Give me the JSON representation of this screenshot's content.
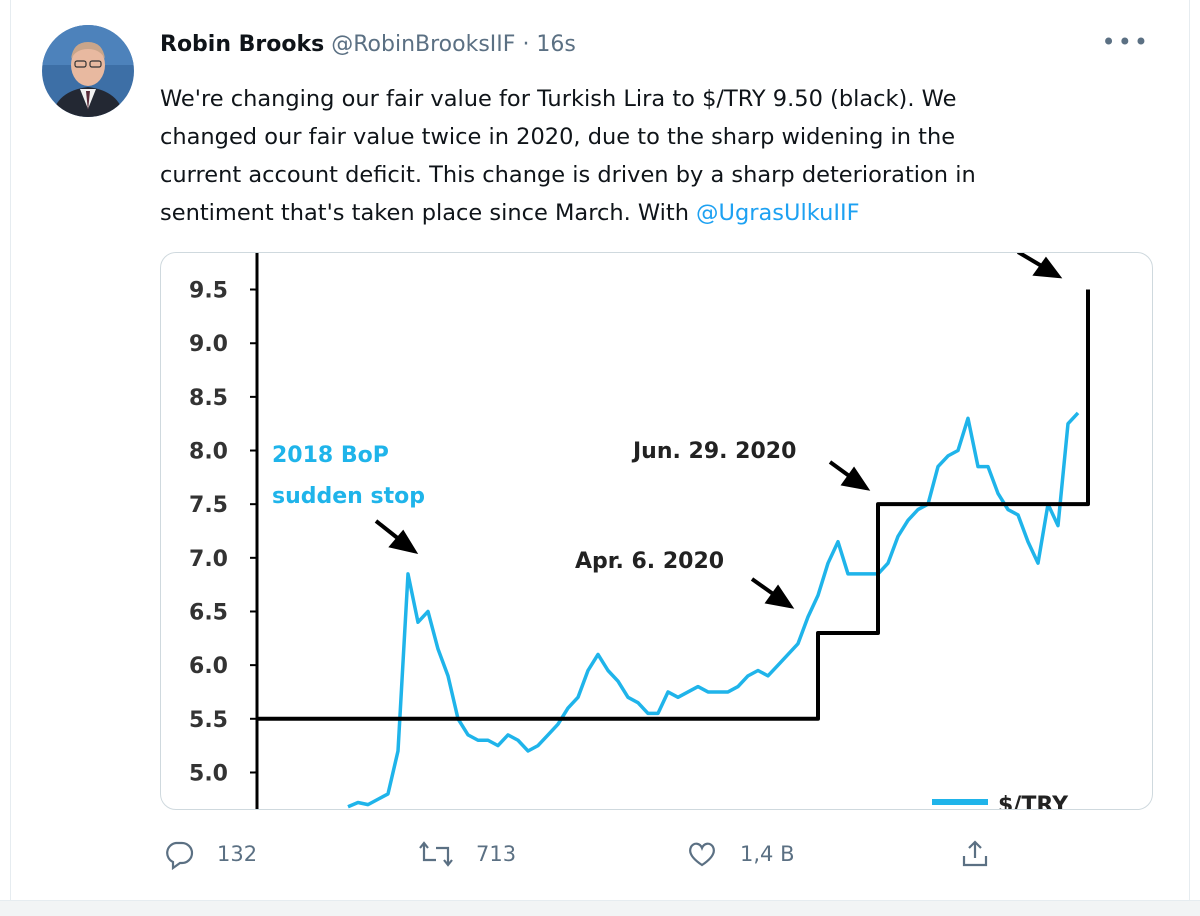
{
  "tweet": {
    "author": "Robin Brooks",
    "handle": "@RobinBrooksIIF",
    "time": "· 16s",
    "text_lines": [
      "We're changing our fair value for Turkish Lira to $/TRY 9.50 (black). We",
      "changed our fair value twice in 2020, due to the sharp widening in the",
      "current account deficit. This change is driven by a sharp deterioration in",
      "sentiment that's taken place since March. With"
    ],
    "mention": "@UgrasUlkuIIF"
  },
  "chart": {
    "ylim": [
      4.65,
      9.85
    ],
    "yticks": [
      {
        "value": 5,
        "label": "5.0"
      },
      5.5,
      {
        "value": 6,
        "label": "6.0"
      },
      6.5,
      {
        "value": 7,
        "label": "7.0"
      },
      7.5,
      {
        "value": 8,
        "label": "8.0"
      },
      8.5,
      {
        "value": 9,
        "label": "9.0"
      },
      9.5
    ],
    "annotations": [
      "2018 BoP",
      "sudden stop",
      "Apr. 6. 2020",
      "Jun. 29. 2020"
    ],
    "series": [
      {
        "name": "$/TRY",
        "color": "#1fb4ea",
        "values": [
          null,
          null,
          null,
          null,
          null,
          null,
          null,
          null,
          null,
          4.68,
          4.72,
          4.7,
          4.75,
          4.8,
          5.2,
          6.85,
          6.4,
          6.5,
          6.15,
          5.9,
          5.5,
          5.35,
          5.3,
          5.3,
          5.25,
          5.35,
          5.3,
          5.2,
          5.25,
          5.35,
          5.45,
          5.6,
          5.7,
          5.95,
          6.1,
          5.95,
          5.85,
          5.7,
          5.65,
          5.55,
          5.55,
          5.75,
          5.7,
          5.75,
          5.8,
          5.75,
          5.75,
          5.75,
          5.8,
          5.9,
          5.95,
          5.9,
          6.0,
          6.1,
          6.2,
          6.45,
          6.65,
          6.95,
          7.15,
          6.85,
          6.85,
          6.85,
          6.85,
          6.95,
          7.2,
          7.35,
          7.45,
          7.5,
          7.85,
          7.95,
          8.0,
          8.3,
          7.85,
          7.85,
          7.6,
          7.45,
          7.4,
          7.15,
          6.95,
          7.5,
          7.3,
          8.25,
          8.35,
          null
        ]
      },
      {
        "color": "#000000",
        "step": true,
        "values": [
          5.5,
          5.5,
          5.5,
          5.5,
          5.5,
          5.5,
          5.5,
          5.5,
          5.5,
          5.5,
          5.5,
          5.5,
          5.5,
          5.5,
          5.5,
          5.5,
          5.5,
          5.5,
          5.5,
          5.5,
          5.5,
          5.5,
          5.5,
          5.5,
          5.5,
          5.5,
          5.5,
          5.5,
          5.5,
          5.5,
          5.5,
          5.5,
          5.5,
          5.5,
          5.5,
          5.5,
          5.5,
          5.5,
          5.5,
          5.5,
          5.5,
          5.5,
          5.5,
          5.5,
          5.5,
          5.5,
          5.5,
          5.5,
          5.5,
          5.5,
          5.5,
          5.5,
          5.5,
          5.5,
          5.5,
          5.5,
          6.3,
          6.3,
          6.3,
          6.3,
          6.3,
          6.3,
          7.5,
          7.5,
          7.5,
          7.5,
          7.5,
          7.5,
          7.5,
          7.5,
          7.5,
          7.5,
          7.5,
          7.5,
          7.5,
          7.5,
          7.5,
          7.5,
          7.5,
          7.5,
          7.5,
          7.5,
          7.5,
          9.5
        ]
      }
    ]
  },
  "actions": {
    "replies": "132",
    "retweets": "713",
    "likes": "1,4 B"
  }
}
